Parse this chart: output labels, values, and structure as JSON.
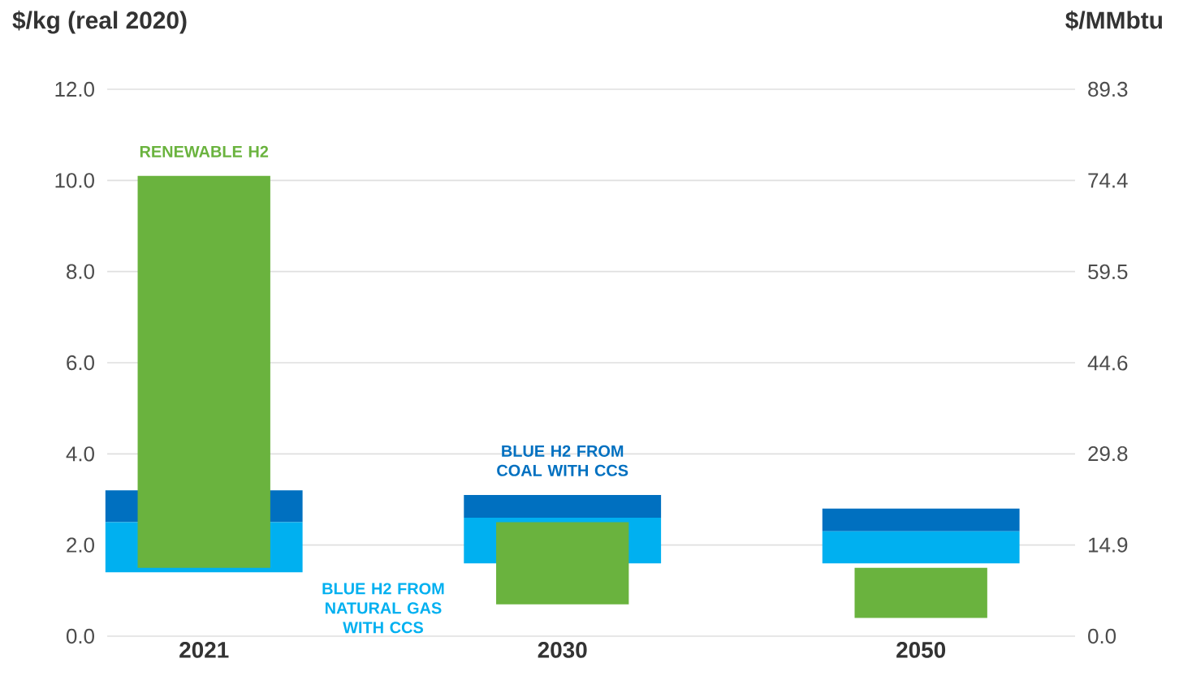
{
  "chart_data": {
    "type": "bar",
    "ylabel": "$/kg (real 2020)",
    "y2label": "$/MMbtu",
    "categories": [
      "2021",
      "2030",
      "2050"
    ],
    "series": [
      {
        "name": "BLUE H2 FROM COAL WITH CCS",
        "color": "#0070c0",
        "base": [
          2.5,
          2.6,
          2.3
        ],
        "values": [
          0.7,
          0.5,
          0.5
        ]
      },
      {
        "name": "BLUE H2 FROM NATURAL GAS WITH CCS",
        "color": "#00b0f0",
        "base": [
          1.4,
          1.6,
          1.6
        ],
        "values": [
          1.1,
          1.0,
          0.7
        ]
      },
      {
        "name": "RENEWABLE H2",
        "color": "#6ab33e",
        "base": [
          1.5,
          0.7,
          0.4
        ],
        "values": [
          8.6,
          1.8,
          1.1
        ]
      }
    ],
    "ylim": [
      0,
      12
    ],
    "yticks": [
      {
        "value": 0,
        "label": "0.0"
      },
      {
        "value": 2,
        "label": "2.0"
      },
      {
        "value": 4,
        "label": "4.0"
      },
      {
        "value": 6,
        "label": "6.0"
      },
      {
        "value": 8,
        "label": "8.0"
      },
      {
        "value": 10,
        "label": "10.0"
      },
      {
        "value": 12,
        "label": "12.0"
      }
    ],
    "y2lim": [
      0,
      89.3
    ],
    "y2ticks": [
      {
        "value": 0,
        "label": "0.0"
      },
      14.9,
      29.8,
      44.6,
      59.5,
      74.4,
      89.3
    ],
    "grid": "y",
    "legend": false
  }
}
